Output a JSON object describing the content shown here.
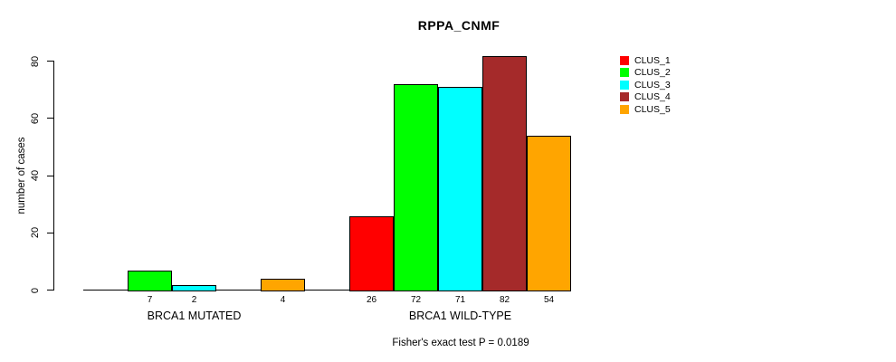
{
  "title": "RPPA_CNMF",
  "footer": "Fisher's exact test P = 0.0189",
  "chart_data": {
    "type": "bar",
    "title": "RPPA_CNMF",
    "xlabel": "",
    "ylabel": "number of cases",
    "ylim": [
      0,
      80
    ],
    "yticks": [
      0,
      20,
      40,
      60,
      80
    ],
    "grid": false,
    "legend_position": "right-outside",
    "categories": [
      "BRCA1 MUTATED",
      "BRCA1 WILD-TYPE"
    ],
    "series": [
      {
        "name": "CLUS_1",
        "color": "#ff0000",
        "values": [
          0,
          26
        ]
      },
      {
        "name": "CLUS_2",
        "color": "#00ff00",
        "values": [
          7,
          72
        ]
      },
      {
        "name": "CLUS_3",
        "color": "#00ffff",
        "values": [
          2,
          71
        ]
      },
      {
        "name": "CLUS_4",
        "color": "#a52a2a",
        "values": [
          0,
          82
        ]
      },
      {
        "name": "CLUS_5",
        "color": "#ffa500",
        "values": [
          4,
          54
        ]
      }
    ],
    "bar_value_labels": {
      "BRCA1 MUTATED": [
        null,
        7,
        2,
        null,
        4
      ],
      "BRCA1 WILD-TYPE": [
        26,
        72,
        71,
        82,
        54
      ]
    },
    "annotation": "Fisher's exact test P = 0.0189",
    "axis_color": "#000000",
    "text_color": "#000000",
    "background_color": "#ffffff"
  }
}
